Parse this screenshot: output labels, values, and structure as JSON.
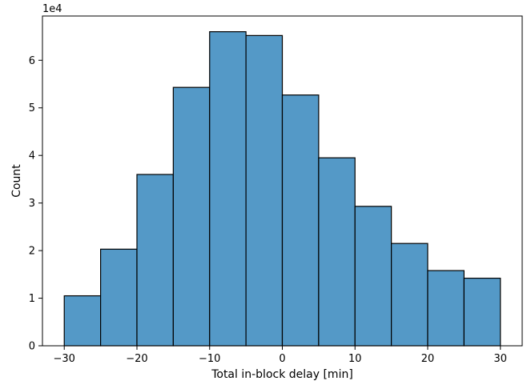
{
  "chart_data": {
    "type": "bar",
    "title": "",
    "xlabel": "Total in-block delay [min]",
    "ylabel": "Count",
    "y_offset_label": "1e4",
    "bins": [
      {
        "start": -30,
        "end": -25,
        "count": 10500
      },
      {
        "start": -25,
        "end": -20,
        "count": 20300
      },
      {
        "start": -20,
        "end": -15,
        "count": 36000
      },
      {
        "start": -15,
        "end": -10,
        "count": 54300
      },
      {
        "start": -10,
        "end": -5,
        "count": 66000
      },
      {
        "start": -5,
        "end": 0,
        "count": 65200
      },
      {
        "start": 0,
        "end": 5,
        "count": 52700
      },
      {
        "start": 5,
        "end": 10,
        "count": 39500
      },
      {
        "start": 10,
        "end": 15,
        "count": 29300
      },
      {
        "start": 15,
        "end": 20,
        "count": 21500
      },
      {
        "start": 20,
        "end": 25,
        "count": 15800
      },
      {
        "start": 25,
        "end": 30,
        "count": 14200
      }
    ],
    "xlim": [
      -33,
      33
    ],
    "ylim": [
      0,
      69300
    ],
    "x_ticks": [
      {
        "value": -30,
        "label": "−30"
      },
      {
        "value": -20,
        "label": "−20"
      },
      {
        "value": -10,
        "label": "−10"
      },
      {
        "value": 0,
        "label": "0"
      },
      {
        "value": 10,
        "label": "10"
      },
      {
        "value": 20,
        "label": "20"
      },
      {
        "value": 30,
        "label": "30"
      }
    ],
    "y_ticks": [
      {
        "value": 0,
        "label": "0"
      },
      {
        "value": 10000,
        "label": "1"
      },
      {
        "value": 20000,
        "label": "2"
      },
      {
        "value": 30000,
        "label": "3"
      },
      {
        "value": 40000,
        "label": "4"
      },
      {
        "value": 50000,
        "label": "5"
      },
      {
        "value": 60000,
        "label": "6"
      }
    ],
    "grid": false,
    "bar_color": "#5499c7"
  }
}
